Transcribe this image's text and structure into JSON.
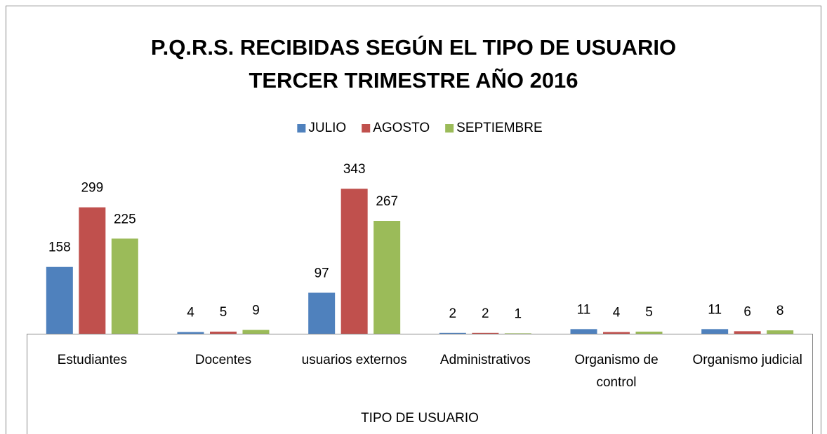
{
  "chart_data": {
    "type": "bar",
    "title": [
      "P.Q.R.S. RECIBIDAS SEGÚN EL TIPO DE USUARIO",
      "TERCER  TRIMESTRE AÑO 2016"
    ],
    "x_label": "TIPO DE USUARIO",
    "categories": [
      "Estudiantes",
      "Docentes",
      "usuarios externos",
      "Administrativos",
      "Organismo de control",
      "Organismo judicial"
    ],
    "series": [
      {
        "name": "JULIO",
        "color": "#4f81bd",
        "values": [
          158,
          4,
          97,
          2,
          11,
          11
        ]
      },
      {
        "name": "AGOSTO",
        "color": "#c0504d",
        "values": [
          299,
          5,
          343,
          2,
          4,
          6
        ]
      },
      {
        "name": "SEPTIEMBRE",
        "color": "#9bbb59",
        "values": [
          225,
          9,
          267,
          1,
          5,
          8
        ]
      }
    ],
    "legend": "top"
  }
}
